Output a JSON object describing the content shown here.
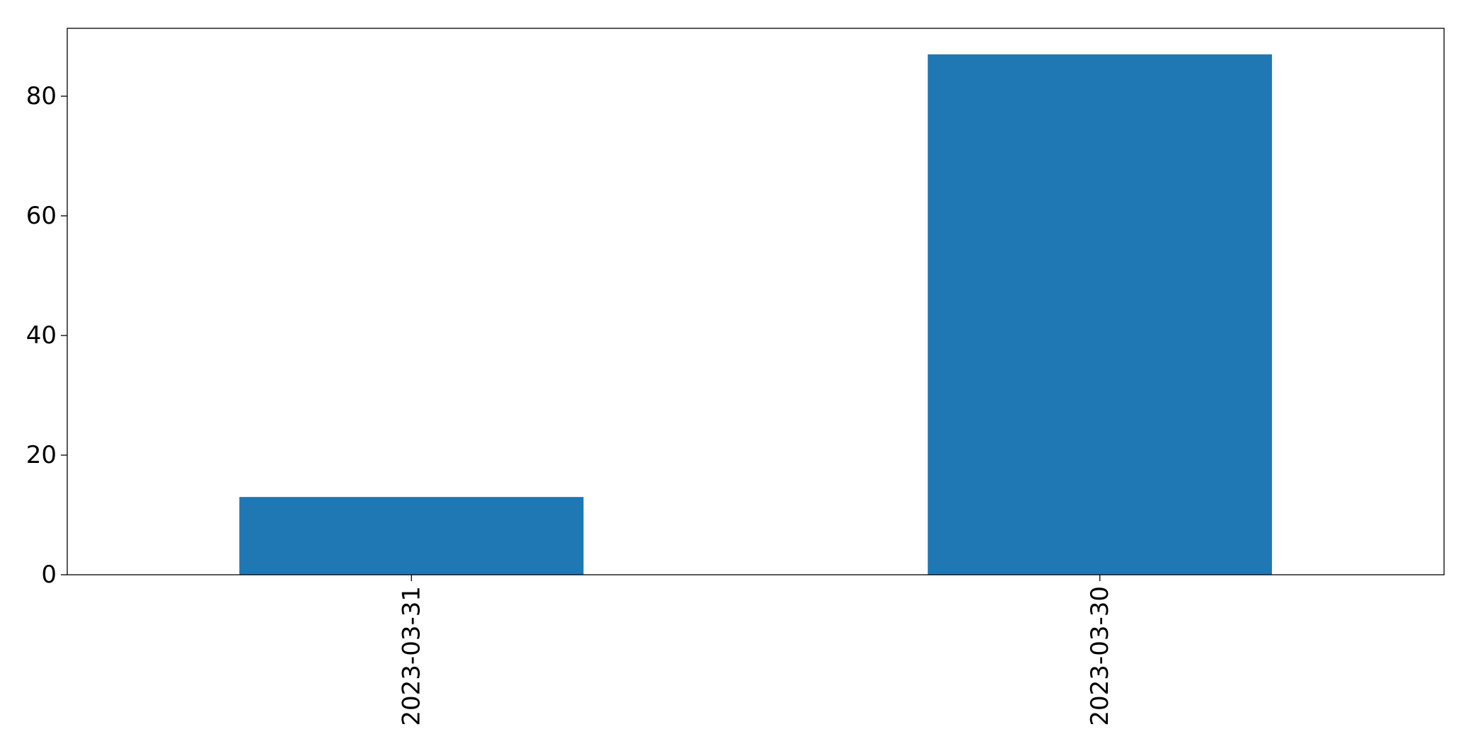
{
  "chart_data": {
    "type": "bar",
    "categories": [
      "2023-03-31",
      "2023-03-30"
    ],
    "values": [
      13,
      87
    ],
    "title": "",
    "xlabel": "",
    "ylabel": "",
    "ylim": [
      0,
      91.35
    ],
    "yticks": [
      0,
      20,
      40,
      60,
      80
    ],
    "ytick_labels": [
      "0",
      "20",
      "40",
      "60",
      "80"
    ],
    "x_tick_rotation": "vertical",
    "grid": false,
    "legend": "none",
    "bar_color": "#1f77b4"
  }
}
